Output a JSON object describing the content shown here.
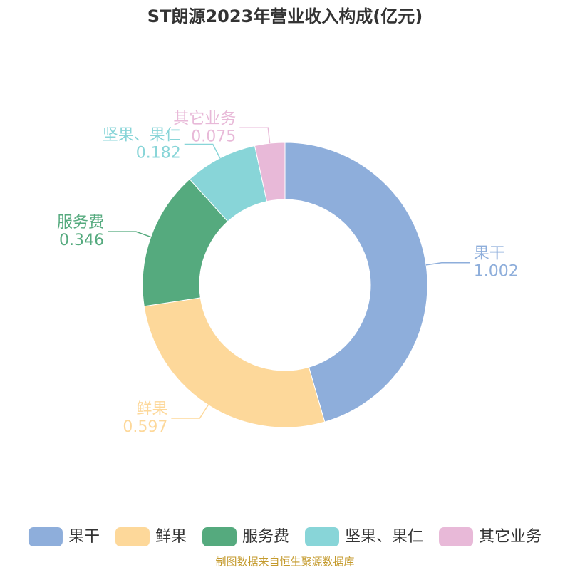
{
  "chart_data": {
    "type": "donut",
    "title": "ST朗源2023年营业收入构成(亿元)",
    "categories": [
      "果干",
      "鲜果",
      "服务费",
      "坚果、果仁",
      "其它业务"
    ],
    "values": [
      1.002,
      0.597,
      0.346,
      0.182,
      0.075
    ],
    "colors": [
      "#8eaedb",
      "#fdd89a",
      "#55aa7e",
      "#88d5d8",
      "#e8b9d8"
    ],
    "legend": "bottom",
    "source": "制图数据来自恒生聚源数据库"
  }
}
